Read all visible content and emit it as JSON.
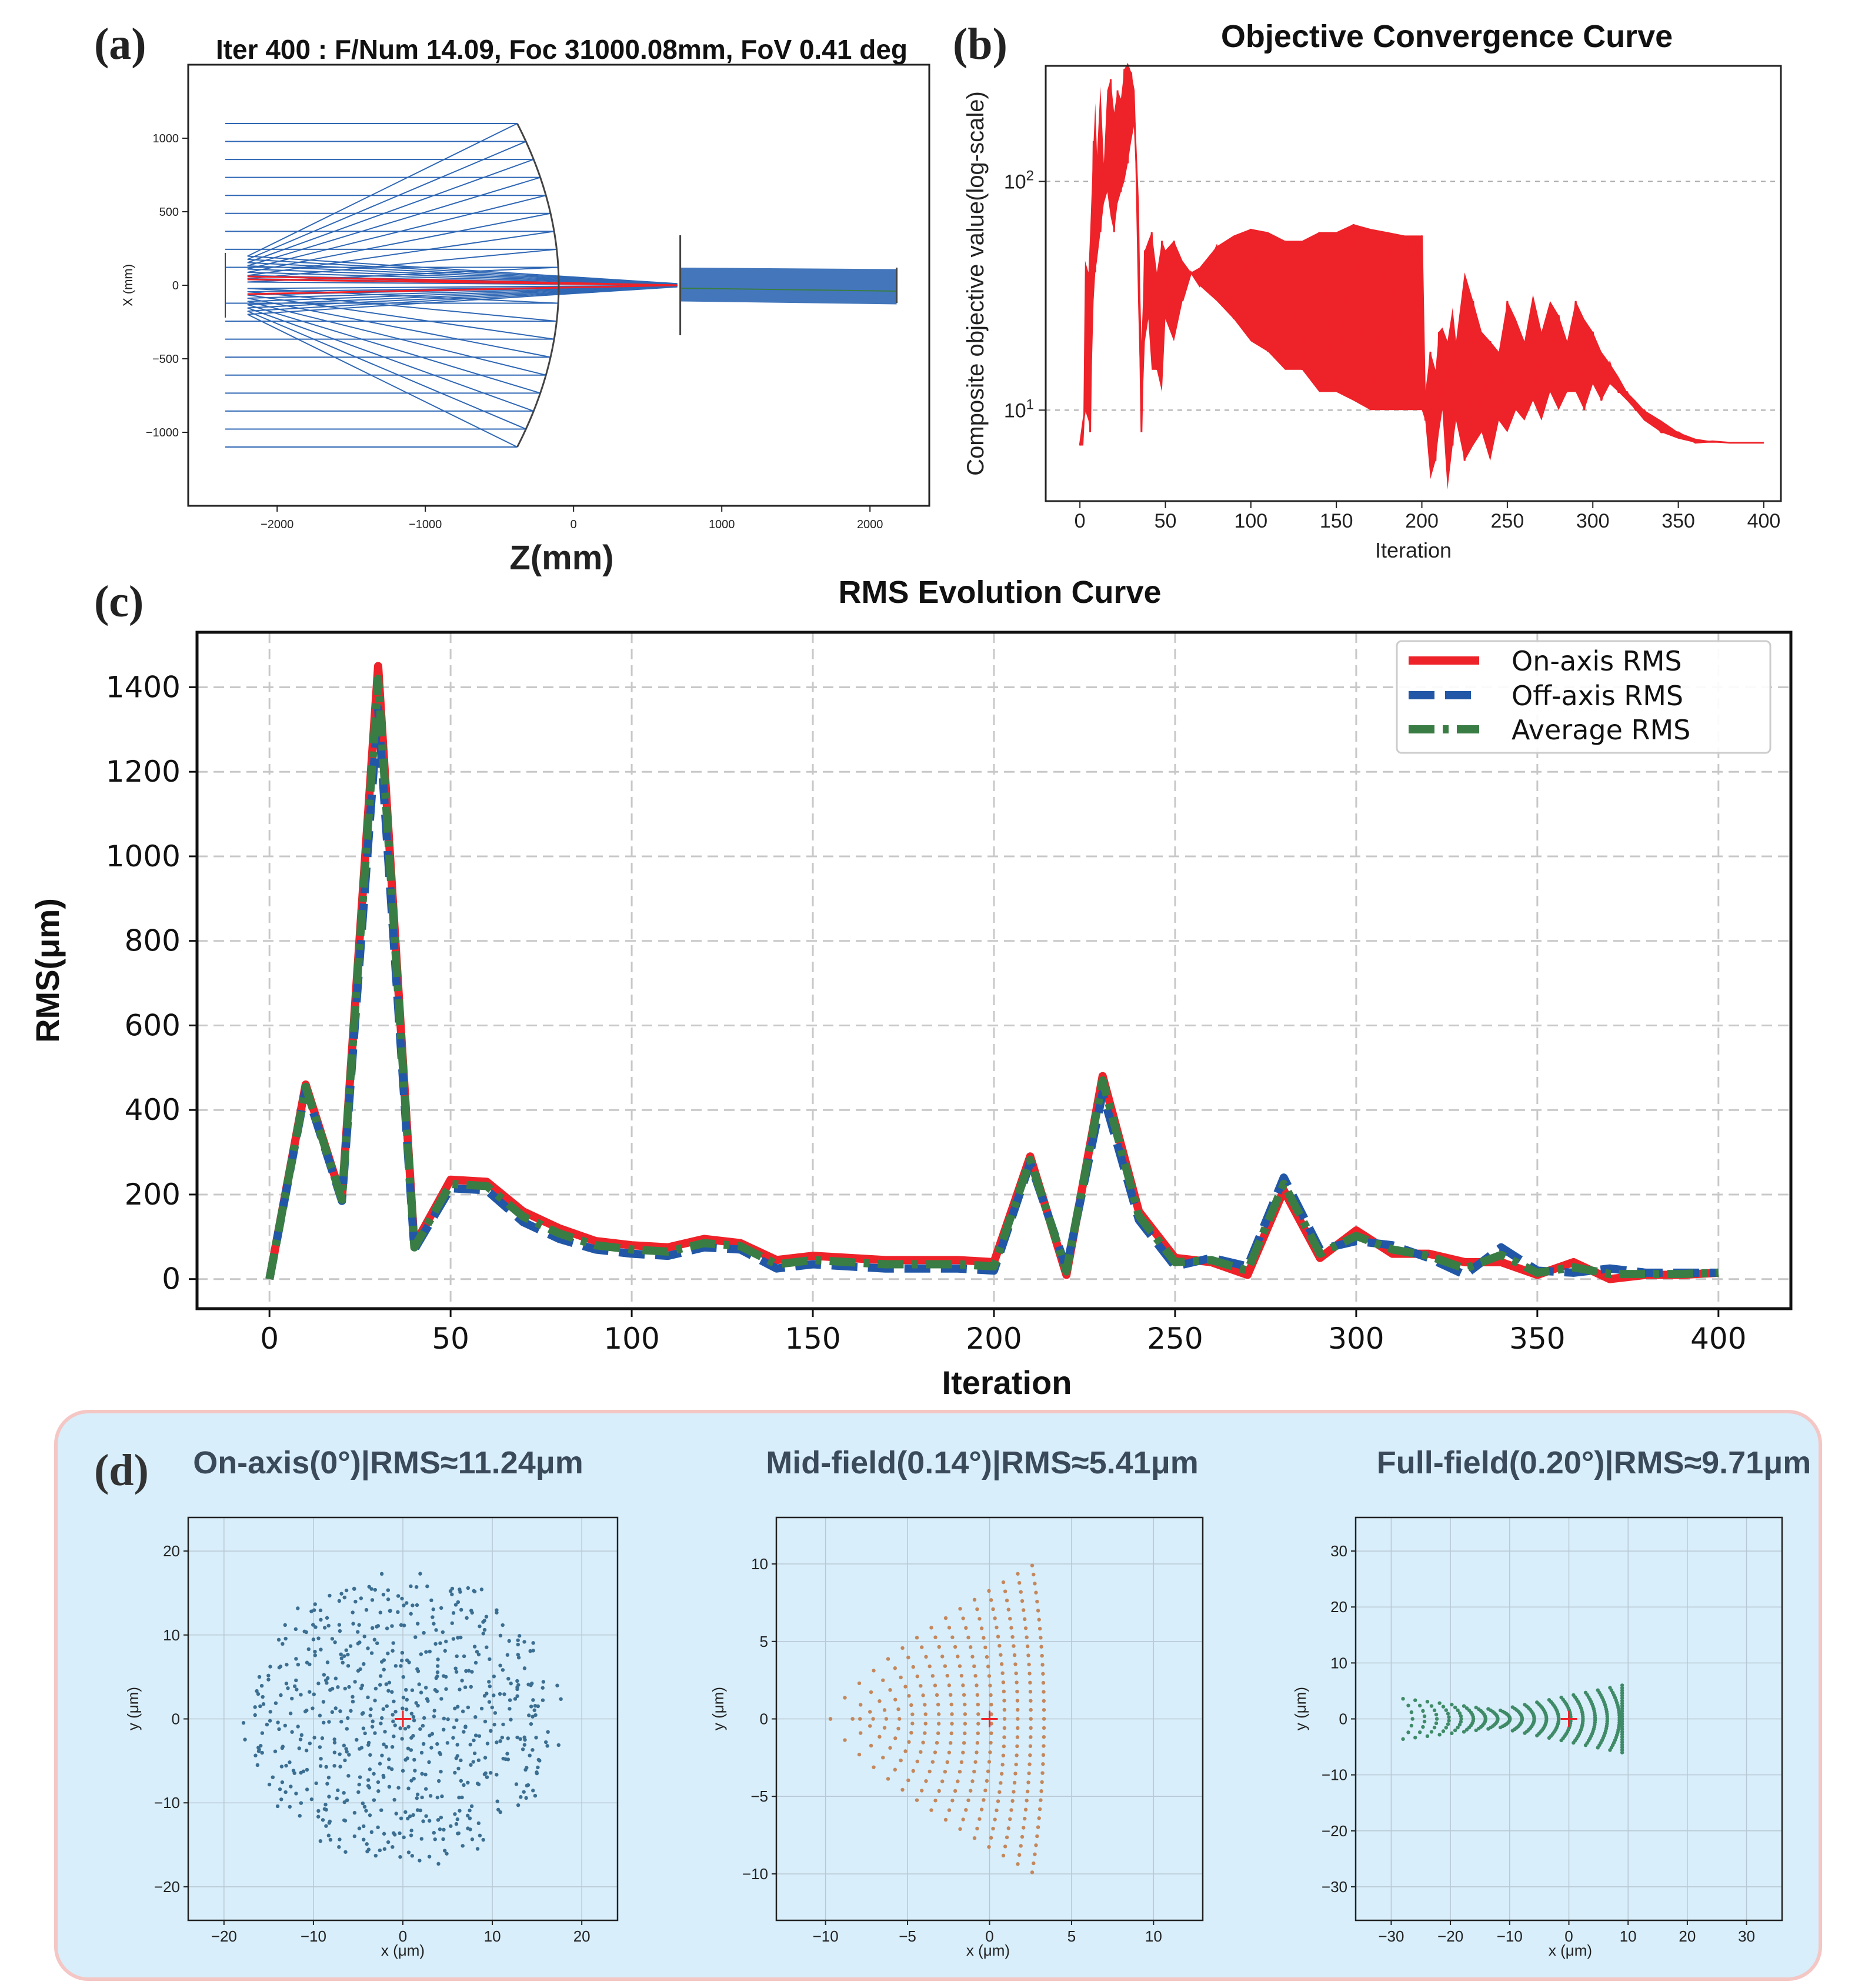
{
  "panel_labels": {
    "a": "(a)",
    "b": "(b)",
    "c": "(c)",
    "d": "(d)"
  },
  "colors": {
    "red": "#ee2229",
    "blue": "#2157a6",
    "green": "#3a7d44",
    "ray_blue": "#2f67b4",
    "panel_d_bg": "#d8eefa",
    "panel_d_border": "#f4c6c4",
    "spot_blue": "#3b6e91",
    "spot_orange": "#c4875c",
    "spot_green": "#3f8a67",
    "grid": "#c8c8c8"
  },
  "chart_data": [
    {
      "id": "a",
      "type": "scatter",
      "title": "Iter 400 : F/Num 14.09, Foc 31000.08mm, FoV 0.41 deg",
      "xlabel": "Z(mm)",
      "ylabel": "X (mm)",
      "xlim": [
        -2600,
        2400
      ],
      "ylim": [
        -1500,
        1500
      ],
      "xticks": [
        -2000,
        -1000,
        0,
        1000,
        2000
      ],
      "yticks": [
        -1000,
        -500,
        0,
        500,
        1000
      ],
      "elements": {
        "entrance_z": -2350,
        "primary_mirror_z": -100,
        "primary_mirror_halfwidth": 1100,
        "secondary_z": 720,
        "secondary_halfwidth": 340,
        "image_z": 2180,
        "image_halfwidth": 120,
        "focus_z": 700
      }
    },
    {
      "id": "b",
      "type": "line",
      "title": "Objective Convergence Curve",
      "xlabel": "Iteration",
      "ylabel": "Composite objective value(log-scale)",
      "xlim": [
        -20,
        410
      ],
      "ylim": [
        4,
        320
      ],
      "xticks": [
        0,
        50,
        100,
        150,
        200,
        250,
        300,
        350,
        400
      ],
      "yticks": [
        "10^1",
        "10^2"
      ],
      "series": [
        {
          "name": "objective",
          "x": [
            0,
            2,
            3,
            5,
            6,
            8,
            9,
            10,
            12,
            14,
            16,
            18,
            20,
            22,
            24,
            26,
            28,
            30,
            32,
            34,
            36,
            38,
            40,
            42,
            45,
            48,
            50,
            55,
            60,
            65,
            70,
            80,
            90,
            100,
            110,
            120,
            130,
            140,
            150,
            160,
            170,
            180,
            190,
            200,
            202,
            205,
            208,
            210,
            212,
            215,
            218,
            220,
            225,
            230,
            235,
            240,
            245,
            250,
            255,
            260,
            265,
            270,
            275,
            280,
            285,
            290,
            295,
            300,
            305,
            310,
            315,
            320,
            325,
            330,
            340,
            350,
            360,
            370,
            380,
            390,
            400
          ],
          "lower": [
            7,
            7,
            10,
            9,
            8,
            30,
            40,
            45,
            60,
            80,
            90,
            70,
            60,
            80,
            90,
            100,
            120,
            150,
            180,
            30,
            8,
            20,
            25,
            15,
            15,
            12,
            25,
            20,
            30,
            40,
            35,
            30,
            25,
            20,
            18,
            15,
            15,
            12,
            12,
            11,
            10,
            10,
            10,
            10,
            9,
            5,
            6,
            8,
            10,
            4.5,
            7,
            9,
            6,
            7,
            8,
            6,
            9,
            8,
            10,
            9,
            11,
            9,
            12,
            10,
            12,
            12,
            10,
            13,
            11,
            13,
            12,
            11,
            10,
            9,
            8,
            7.5,
            7.2,
            7.2,
            7.2,
            7.2,
            7.2
          ],
          "upper": [
            7,
            9,
            45,
            40,
            60,
            150,
            220,
            130,
            260,
            120,
            250,
            280,
            200,
            250,
            230,
            310,
            330,
            300,
            250,
            80,
            20,
            50,
            55,
            60,
            40,
            55,
            50,
            55,
            45,
            40,
            42,
            52,
            58,
            62,
            60,
            55,
            55,
            60,
            60,
            65,
            62,
            60,
            58,
            58,
            12,
            18,
            15,
            22,
            23,
            20,
            28,
            20,
            40,
            30,
            22,
            20,
            18,
            30,
            25,
            20,
            32,
            22,
            30,
            26,
            20,
            30,
            25,
            22,
            18,
            16,
            14,
            12,
            11,
            10,
            9,
            8,
            7.5,
            7.3,
            7.2,
            7.2,
            7.2
          ]
        }
      ]
    },
    {
      "id": "c",
      "type": "line",
      "title": "RMS Evolution Curve",
      "xlabel": "Iteration",
      "ylabel": "RMS(μm)",
      "xlim": [
        -20,
        420
      ],
      "ylim": [
        -70,
        1530
      ],
      "xticks": [
        0,
        50,
        100,
        150,
        200,
        250,
        300,
        350,
        400
      ],
      "yticks": [
        0,
        200,
        400,
        600,
        800,
        1000,
        1200,
        1400
      ],
      "grid": true,
      "legend_position": "top-right",
      "x": [
        0,
        10,
        20,
        30,
        40,
        50,
        60,
        70,
        80,
        90,
        100,
        110,
        120,
        130,
        140,
        150,
        160,
        170,
        180,
        190,
        200,
        210,
        220,
        230,
        240,
        250,
        260,
        270,
        280,
        290,
        300,
        310,
        320,
        330,
        340,
        350,
        360,
        370,
        380,
        390,
        400
      ],
      "series": [
        {
          "name": "On-axis RMS",
          "style": "solid",
          "values": [
            0,
            460,
            190,
            1450,
            80,
            235,
            230,
            160,
            120,
            90,
            80,
            75,
            95,
            85,
            45,
            55,
            50,
            45,
            45,
            45,
            40,
            290,
            10,
            480,
            160,
            50,
            40,
            10,
            210,
            50,
            115,
            60,
            60,
            40,
            40,
            10,
            40,
            0,
            10,
            10,
            15
          ]
        },
        {
          "name": "Off-axis RMS",
          "style": "dashed",
          "values": [
            0,
            450,
            185,
            1350,
            70,
            215,
            210,
            135,
            95,
            70,
            60,
            55,
            75,
            70,
            25,
            35,
            30,
            25,
            25,
            25,
            20,
            275,
            25,
            440,
            140,
            30,
            50,
            30,
            240,
            70,
            90,
            80,
            50,
            10,
            75,
            20,
            15,
            25,
            15,
            15,
            15
          ]
        },
        {
          "name": "Average RMS",
          "style": "dashdot",
          "values": [
            0,
            455,
            188,
            1420,
            75,
            225,
            220,
            148,
            108,
            80,
            70,
            65,
            85,
            78,
            35,
            45,
            40,
            35,
            35,
            35,
            30,
            282,
            18,
            470,
            150,
            40,
            45,
            20,
            225,
            60,
            102,
            70,
            55,
            25,
            57,
            15,
            28,
            12,
            12,
            12,
            15
          ]
        }
      ]
    },
    {
      "id": "d1",
      "type": "scatter",
      "title": "On-axis(0°)|RMS≈11.24μm",
      "xlabel": "x (μm)",
      "ylabel": "y (μm)",
      "xlim": [
        -24,
        24
      ],
      "ylim": [
        -24,
        24
      ],
      "xticks": [
        -20,
        -10,
        0,
        10,
        20
      ],
      "yticks": [
        -20,
        -10,
        0,
        10,
        20
      ],
      "grid": true,
      "pattern": "disk",
      "radius": 17.5
    },
    {
      "id": "d2",
      "type": "scatter",
      "title": "Mid-field(0.14°)|RMS≈5.41μm",
      "xlabel": "x (μm)",
      "ylabel": "y (μm)",
      "xlim": [
        -13,
        13
      ],
      "ylim": [
        -13,
        13
      ],
      "xticks": [
        -10,
        -5,
        0,
        5,
        10
      ],
      "yticks": [
        -10,
        -5,
        0,
        5,
        10
      ],
      "grid": true,
      "pattern": "coma",
      "tip_x": -8.5,
      "edge_x": 3.8,
      "half_height": 9.9
    },
    {
      "id": "d3",
      "type": "scatter",
      "title": "Full-field(0.20°)|RMS≈9.71μm",
      "xlabel": "x (μm)",
      "ylabel": "y (μm)",
      "xlim": [
        -36,
        36
      ],
      "ylim": [
        -36,
        36
      ],
      "xticks": [
        -30,
        -20,
        -10,
        0,
        10,
        20,
        30
      ],
      "yticks": [
        -30,
        -20,
        -10,
        0,
        10,
        20,
        30
      ],
      "grid": true,
      "pattern": "bowtie",
      "tip_x": -28,
      "edge_x": 9,
      "half_height": 6
    }
  ]
}
